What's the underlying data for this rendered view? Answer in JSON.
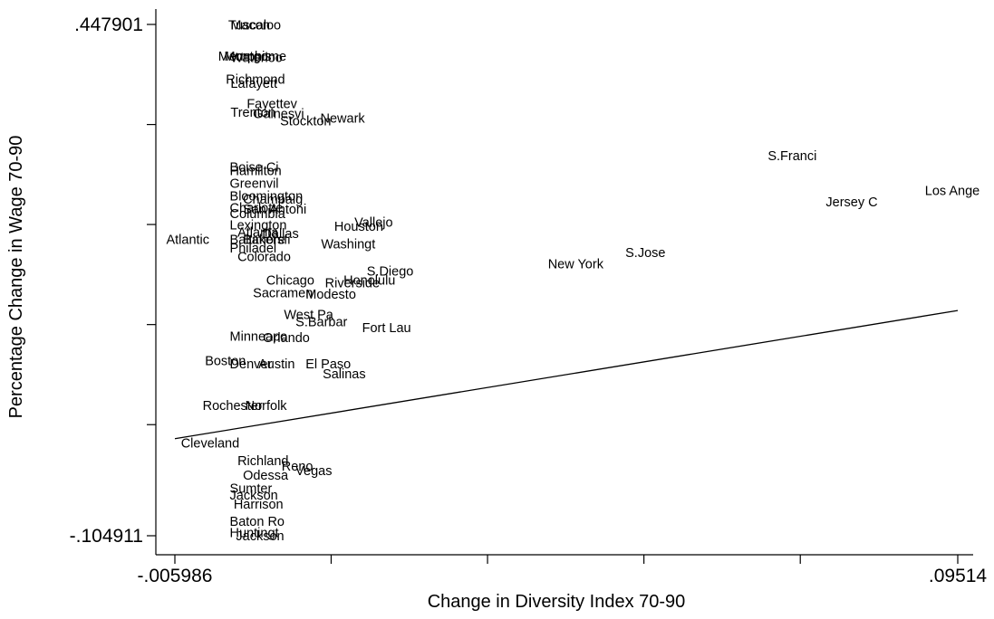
{
  "chart_data": {
    "type": "scatter",
    "title": "",
    "xlabel": "Change in Diversity Index 70-90",
    "ylabel": "Percentage Change in Wage 70-90",
    "xlim": [
      -0.005986,
      0.09514
    ],
    "ylim": [
      -0.104911,
      0.447901
    ],
    "x_ticks": [
      -0.005986,
      0.0041,
      0.0142,
      0.0243,
      0.0344,
      0.0445,
      0.0546,
      0.0647,
      0.0748,
      0.0849,
      0.09514
    ],
    "x_tick_labels": [
      {
        "value": -0.005986,
        "label": "-.005986"
      },
      {
        "value": 0.09514,
        "label": ".09514"
      }
    ],
    "y_ticks": [
      0.447901,
      0.3397,
      0.2316,
      0.1234,
      0.0152,
      -0.104911
    ],
    "y_tick_labels": [
      {
        "value": 0.447901,
        "label": ".447901"
      },
      {
        "value": -0.104911,
        "label": "-.104911"
      }
    ],
    "fit_line": {
      "x": [
        -0.005986,
        0.09514
      ],
      "y": [
        0.0,
        0.1386
      ]
    },
    "marker_labels": [
      {
        "label": "Tuscaloo",
        "x": 0.0009,
        "y": 0.4476
      },
      {
        "label": "Macon",
        "x": 0.0012,
        "y": 0.4476
      },
      {
        "label": "Memphis",
        "x": -0.0004,
        "y": 0.4137
      },
      {
        "label": "Montgome",
        "x": 0.0004,
        "y": 0.4137
      },
      {
        "label": "Waterloo",
        "x": 0.0012,
        "y": 0.4122
      },
      {
        "label": "Richmond",
        "x": 0.0006,
        "y": 0.3888
      },
      {
        "label": "Lafayett",
        "x": 0.0012,
        "y": 0.3842
      },
      {
        "label": "Fayettev",
        "x": 0.0033,
        "y": 0.3623
      },
      {
        "label": "Trenton",
        "x": 0.0012,
        "y": 0.3529
      },
      {
        "label": "Gainesvi",
        "x": 0.0041,
        "y": 0.3514
      },
      {
        "label": "Stockton",
        "x": 0.0076,
        "y": 0.3436
      },
      {
        "label": "Newark",
        "x": 0.0128,
        "y": 0.3467
      },
      {
        "label": "S.Franci",
        "x": 0.0706,
        "y": 0.3061
      },
      {
        "label": "Boise Ci",
        "x": 0.0011,
        "y": 0.2936
      },
      {
        "label": "Hamilton",
        "x": 0.0011,
        "y": 0.2897
      },
      {
        "label": "Greenvil",
        "x": 0.0011,
        "y": 0.2764
      },
      {
        "label": "Champaig",
        "x": 0.0028,
        "y": 0.2592
      },
      {
        "label": "Bloomington",
        "x": 0.0011,
        "y": 0.2623
      },
      {
        "label": "San Antoni",
        "x": 0.0028,
        "y": 0.2483
      },
      {
        "label": "Columbia",
        "x": 0.0011,
        "y": 0.2436
      },
      {
        "label": "Charlotte",
        "x": 0.0011,
        "y": 0.2498
      },
      {
        "label": "Lexington",
        "x": 0.0011,
        "y": 0.2311
      },
      {
        "label": "Atlanta",
        "x": 0.0021,
        "y": 0.2233
      },
      {
        "label": "Dallas",
        "x": 0.0053,
        "y": 0.2217
      },
      {
        "label": "Houston",
        "x": 0.0146,
        "y": 0.2295
      },
      {
        "label": "Vallejo",
        "x": 0.0172,
        "y": 0.2342
      },
      {
        "label": "Jersey C",
        "x": 0.0781,
        "y": 0.2561
      },
      {
        "label": "Los Ange",
        "x": 0.0909,
        "y": 0.2686
      },
      {
        "label": "Atlantic",
        "x": -0.0071,
        "y": 0.2155
      },
      {
        "label": "Baltimore",
        "x": 0.0011,
        "y": 0.2155
      },
      {
        "label": "Bakersfi",
        "x": 0.0028,
        "y": 0.2155
      },
      {
        "label": "Philadel",
        "x": 0.0011,
        "y": 0.2061
      },
      {
        "label": "Washingt",
        "x": 0.0129,
        "y": 0.2108
      },
      {
        "label": "Colorado",
        "x": 0.0021,
        "y": 0.1967
      },
      {
        "label": "S.Jose",
        "x": 0.0522,
        "y": 0.2014
      },
      {
        "label": "New York",
        "x": 0.0422,
        "y": 0.1889
      },
      {
        "label": "S.Diego",
        "x": 0.0188,
        "y": 0.1811
      },
      {
        "label": "Honolulu",
        "x": 0.0158,
        "y": 0.1717
      },
      {
        "label": "Riverside",
        "x": 0.0134,
        "y": 0.1686
      },
      {
        "label": "Chicago",
        "x": 0.0058,
        "y": 0.1717
      },
      {
        "label": "Modesto",
        "x": 0.0109,
        "y": 0.1561
      },
      {
        "label": "Sacramen",
        "x": 0.0041,
        "y": 0.1577
      },
      {
        "label": "West Pa",
        "x": 0.0081,
        "y": 0.1342
      },
      {
        "label": "S.Barbar",
        "x": 0.0096,
        "y": 0.1264
      },
      {
        "label": "Fort Lau",
        "x": 0.0182,
        "y": 0.1202
      },
      {
        "label": "Orlando",
        "x": 0.0054,
        "y": 0.1092
      },
      {
        "label": "Minneapo",
        "x": 0.0011,
        "y": 0.1108
      },
      {
        "label": "Boston",
        "x": -0.0021,
        "y": 0.0842
      },
      {
        "label": "Denver",
        "x": 0.0011,
        "y": 0.0811
      },
      {
        "label": "Austin",
        "x": 0.0048,
        "y": 0.0811
      },
      {
        "label": "El Paso",
        "x": 0.0109,
        "y": 0.0811
      },
      {
        "label": "Salinas",
        "x": 0.0131,
        "y": 0.0702
      },
      {
        "label": "Rochester",
        "x": -0.0024,
        "y": 0.0358
      },
      {
        "label": "Norfolk",
        "x": 0.0031,
        "y": 0.0358
      },
      {
        "label": "Cleveland",
        "x": -0.0052,
        "y": -0.0048
      },
      {
        "label": "Richland",
        "x": 0.0021,
        "y": -0.0236
      },
      {
        "label": "Reno",
        "x": 0.0078,
        "y": -0.0298
      },
      {
        "label": "Vegas",
        "x": 0.0096,
        "y": -0.0345
      },
      {
        "label": "Odessa",
        "x": 0.0028,
        "y": -0.0392
      },
      {
        "label": "Sumter",
        "x": 0.0011,
        "y": -0.0533
      },
      {
        "label": "Jackson",
        "x": 0.0011,
        "y": -0.0611
      },
      {
        "label": "Harrison",
        "x": 0.0016,
        "y": -0.0705
      },
      {
        "label": "Baton Ro",
        "x": 0.0011,
        "y": -0.0892
      },
      {
        "label": "Huntingt",
        "x": 0.0011,
        "y": -0.1017
      },
      {
        "label": "Jackson",
        "x": 0.0019,
        "y": -0.1049
      }
    ]
  }
}
